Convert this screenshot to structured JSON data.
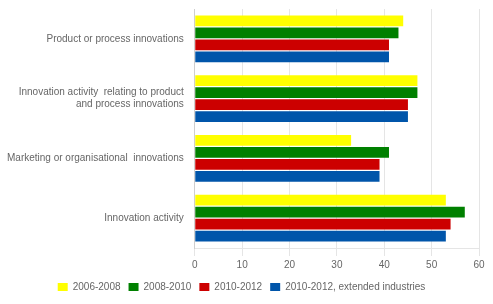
{
  "chart_data": {
    "type": "bar",
    "orientation": "horizontal",
    "categories": [
      "Product or process innovations",
      "Innovation activity  relating to product\nand process innovations",
      "Marketing or organisational  innovations",
      "Innovation activity"
    ],
    "series": [
      {
        "name": "2006-2008",
        "color": "#ffff00",
        "values": [
          44,
          47,
          33,
          53
        ]
      },
      {
        "name": "2008-2010",
        "color": "#008000",
        "values": [
          43,
          47,
          41,
          57
        ]
      },
      {
        "name": "2010-2012",
        "color": "#cc0000",
        "values": [
          41,
          45,
          39,
          54
        ]
      },
      {
        "name": "2010-2012, extended industries",
        "color": "#0055aa",
        "values": [
          41,
          45,
          39,
          53
        ]
      }
    ],
    "xlim": [
      0,
      60
    ],
    "xticks": [
      0,
      10,
      20,
      30,
      40,
      50,
      60
    ],
    "grid": true,
    "legend": "bottom"
  }
}
